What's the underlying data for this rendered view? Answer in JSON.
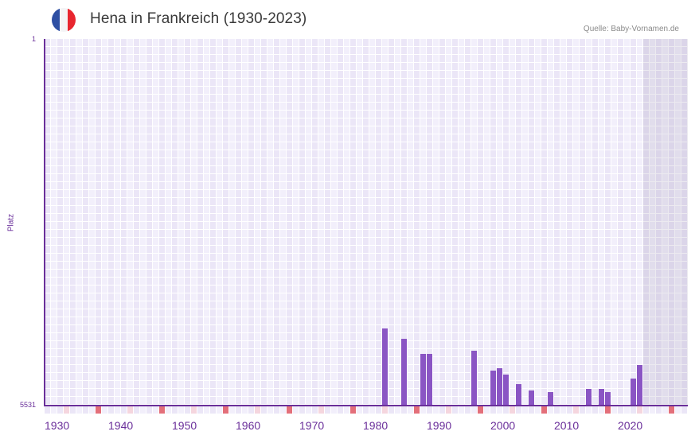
{
  "header": {
    "title": "Hena in Frankreich (1930-2023)",
    "source": "Quelle: Baby-Vornamen.de",
    "flag_icon": "france-flag-icon",
    "flag_colors": [
      "#2e4fa3",
      "#f4f4f6",
      "#e8262f"
    ]
  },
  "colors": {
    "bar": "#8a55c4",
    "axis": "#6a2f9a",
    "grid_light": "#f2effb",
    "grid_dark": "#ebe6f7",
    "future_shade": "#d6d0e3",
    "strip_red": "#e36f7a",
    "strip_pink": "#f5d6de",
    "text_axis": "#6a2f9a"
  },
  "chart_data": {
    "type": "bar",
    "title": "Hena in Frankreich (1930-2023)",
    "xlabel": "",
    "ylabel": "Platz",
    "y_inverted": true,
    "ylim": [
      5531,
      1
    ],
    "xlim": [
      1930,
      2030
    ],
    "x_tick_labels": [
      "1930",
      "1940",
      "1950",
      "1960",
      "1970",
      "1980",
      "1990",
      "2000",
      "2010",
      "2020"
    ],
    "y_tick_labels": [
      "1",
      "5531"
    ],
    "grid": true,
    "future_shaded_from": 2024,
    "x": [
      1983,
      1986,
      1989,
      1990,
      1997,
      2000,
      2001,
      2002,
      2004,
      2006,
      2009,
      2015,
      2017,
      2018,
      2022,
      2023
    ],
    "values": [
      4377,
      4532,
      4761,
      4761,
      4713,
      5013,
      4977,
      5073,
      5218,
      5314,
      5338,
      5290,
      5290,
      5338,
      5134,
      4930
    ]
  }
}
